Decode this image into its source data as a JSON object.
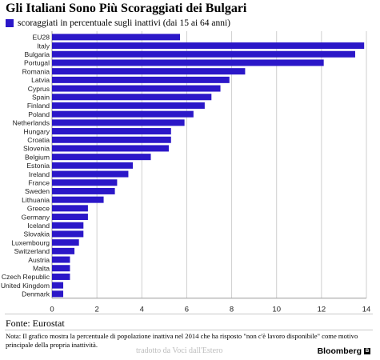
{
  "colors": {
    "bar": "#2b17c8",
    "grid": "#cfcfcf",
    "axis": "#9a9a9a",
    "text": "#222222"
  },
  "title": "Gli Italiani Sono Più Scoraggiati dei Bulgari",
  "legend_label": "scoraggiati in percentuale sugli inattivi (dai 15 ai 64 anni)",
  "source": "Fonte: Eurostat",
  "note": "Nota: Il grafico mostra la percentuale di popolazione inattiva nel 2014 che ha risposto \"non c'è lavoro disponibile\" come motivo principale della propria inattività.",
  "credit": "tradotto da Voci dall'Estero",
  "brand": "Bloomberg",
  "brand_icon": "bloomberg-logo-icon",
  "chart_data": {
    "type": "bar",
    "orientation": "horizontal",
    "title": "Gli Italiani Sono Più Scoraggiati dei Bulgari",
    "xlim": [
      0,
      14
    ],
    "x_ticks": [
      0,
      2,
      4,
      6,
      8,
      10,
      12,
      14
    ],
    "grid": "vertical",
    "legend_position": "top-left",
    "series": [
      {
        "name": "scoraggiati in percentuale sugli inattivi (dai 15 ai 64 anni)",
        "color": "#2b17c8",
        "values": [
          5.7,
          13.9,
          13.5,
          12.1,
          8.6,
          7.9,
          7.5,
          7.1,
          6.8,
          6.3,
          5.9,
          5.3,
          5.3,
          5.2,
          4.4,
          3.6,
          3.4,
          2.9,
          2.8,
          2.3,
          1.6,
          1.6,
          1.4,
          1.4,
          1.2,
          1.0,
          0.8,
          0.8,
          0.8,
          0.5,
          0.5
        ]
      }
    ],
    "categories": [
      "EU28",
      "Italy",
      "Bulgaria",
      "Portugal",
      "Romania",
      "Latvia",
      "Cyprus",
      "Spain",
      "Finland",
      "Poland",
      "Netherlands",
      "Hungary",
      "Croatia",
      "Slovenia",
      "Belgium",
      "Estonia",
      "Ireland",
      "France",
      "Sweden",
      "Lithuania",
      "Greece",
      "Germany",
      "Iceland",
      "Slovakia",
      "Luxembourg",
      "Switzerland",
      "Austria",
      "Malta",
      "Czech Republic",
      "United Kingdom",
      "Denmark"
    ]
  }
}
